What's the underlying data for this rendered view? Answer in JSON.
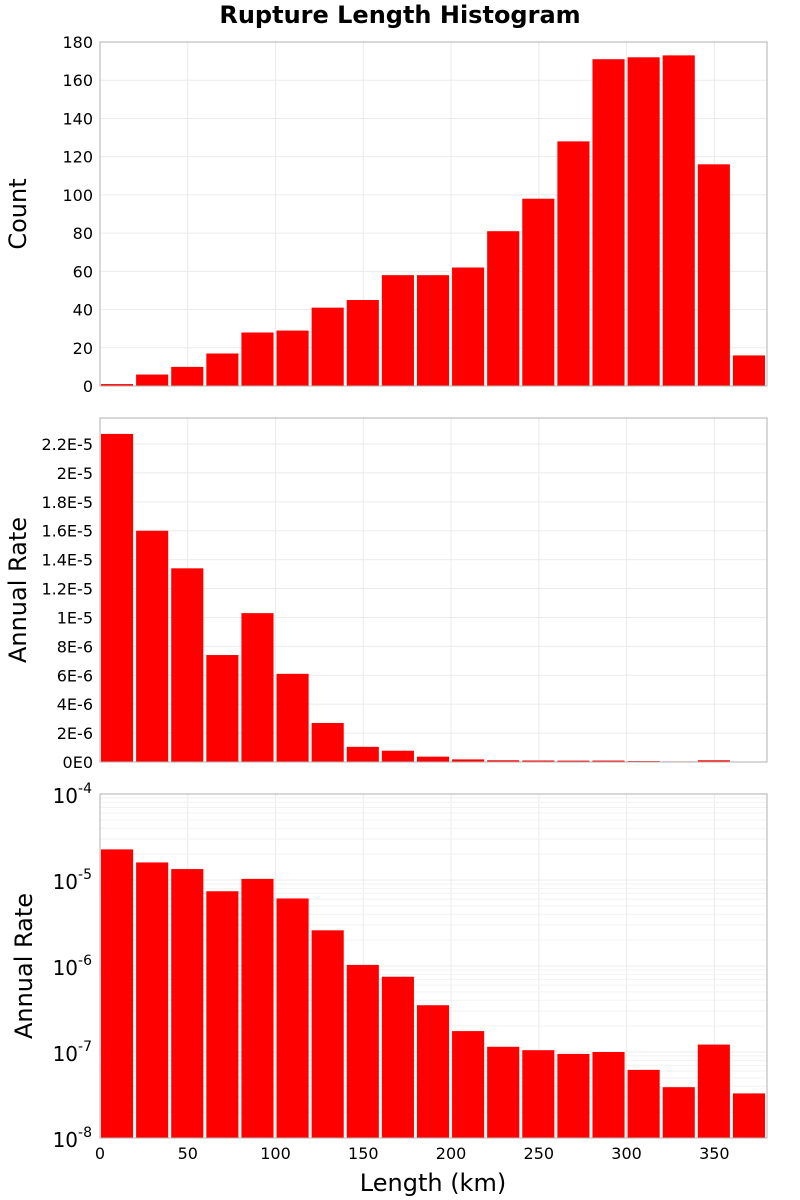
{
  "chart_data": {
    "type": "bar",
    "title": "Rupture Length Histogram",
    "xlabel": "Length (km)",
    "xlim": [
      0,
      380
    ],
    "bin_width": 20,
    "x_ticks": [
      "0",
      "50",
      "100",
      "150",
      "200",
      "250",
      "300",
      "350"
    ],
    "x": [
      10,
      30,
      50,
      70,
      90,
      110,
      130,
      150,
      170,
      190,
      210,
      230,
      250,
      270,
      290,
      310,
      330,
      350,
      370
    ],
    "bar_color": "#ff0000",
    "panels": [
      {
        "ylabel": "Count",
        "scale": "linear",
        "ylim": [
          0,
          180
        ],
        "y_ticks": [
          "0",
          "20",
          "40",
          "60",
          "80",
          "100",
          "120",
          "140",
          "160",
          "180"
        ],
        "values": [
          1,
          6,
          10,
          17,
          28,
          29,
          41,
          45,
          58,
          58,
          62,
          81,
          98,
          128,
          171,
          172,
          173,
          116,
          16
        ]
      },
      {
        "ylabel": "Annual Rate",
        "scale": "linear",
        "ylim": [
          0,
          2.38e-05
        ],
        "y_ticks": [
          "0E0",
          "2E-6",
          "4E-6",
          "6E-6",
          "8E-6",
          "1E-5",
          "1.2E-5",
          "1.4E-5",
          "1.6E-5",
          "1.8E-5",
          "2E-5",
          "2.2E-5"
        ],
        "values": [
          2.27e-05,
          1.6e-05,
          1.34e-05,
          7.4e-06,
          1.03e-05,
          6.1e-06,
          2.7e-06,
          1.05e-06,
          7.8e-07,
          3.7e-07,
          1.8e-07,
          1.2e-07,
          1.05e-07,
          9.5e-08,
          1e-07,
          6.5e-08,
          4e-08,
          1.2e-07,
          3.5e-08
        ]
      },
      {
        "ylabel": "Annual Rate",
        "scale": "log",
        "ylim": [
          1e-08,
          0.0001
        ],
        "y_ticks_base": [
          "10",
          "10",
          "10",
          "10",
          "10"
        ],
        "y_ticks_exp": [
          "-8",
          "-7",
          "-6",
          "-5",
          "-4"
        ],
        "values": [
          2.27e-05,
          1.6e-05,
          1.34e-05,
          7.4e-06,
          1.03e-05,
          6.1e-06,
          2.6e-06,
          1.03e-06,
          7.5e-07,
          3.5e-07,
          1.75e-07,
          1.15e-07,
          1.05e-07,
          9.5e-08,
          1e-07,
          6.2e-08,
          3.9e-08,
          1.22e-07,
          3.3e-08
        ]
      }
    ]
  }
}
